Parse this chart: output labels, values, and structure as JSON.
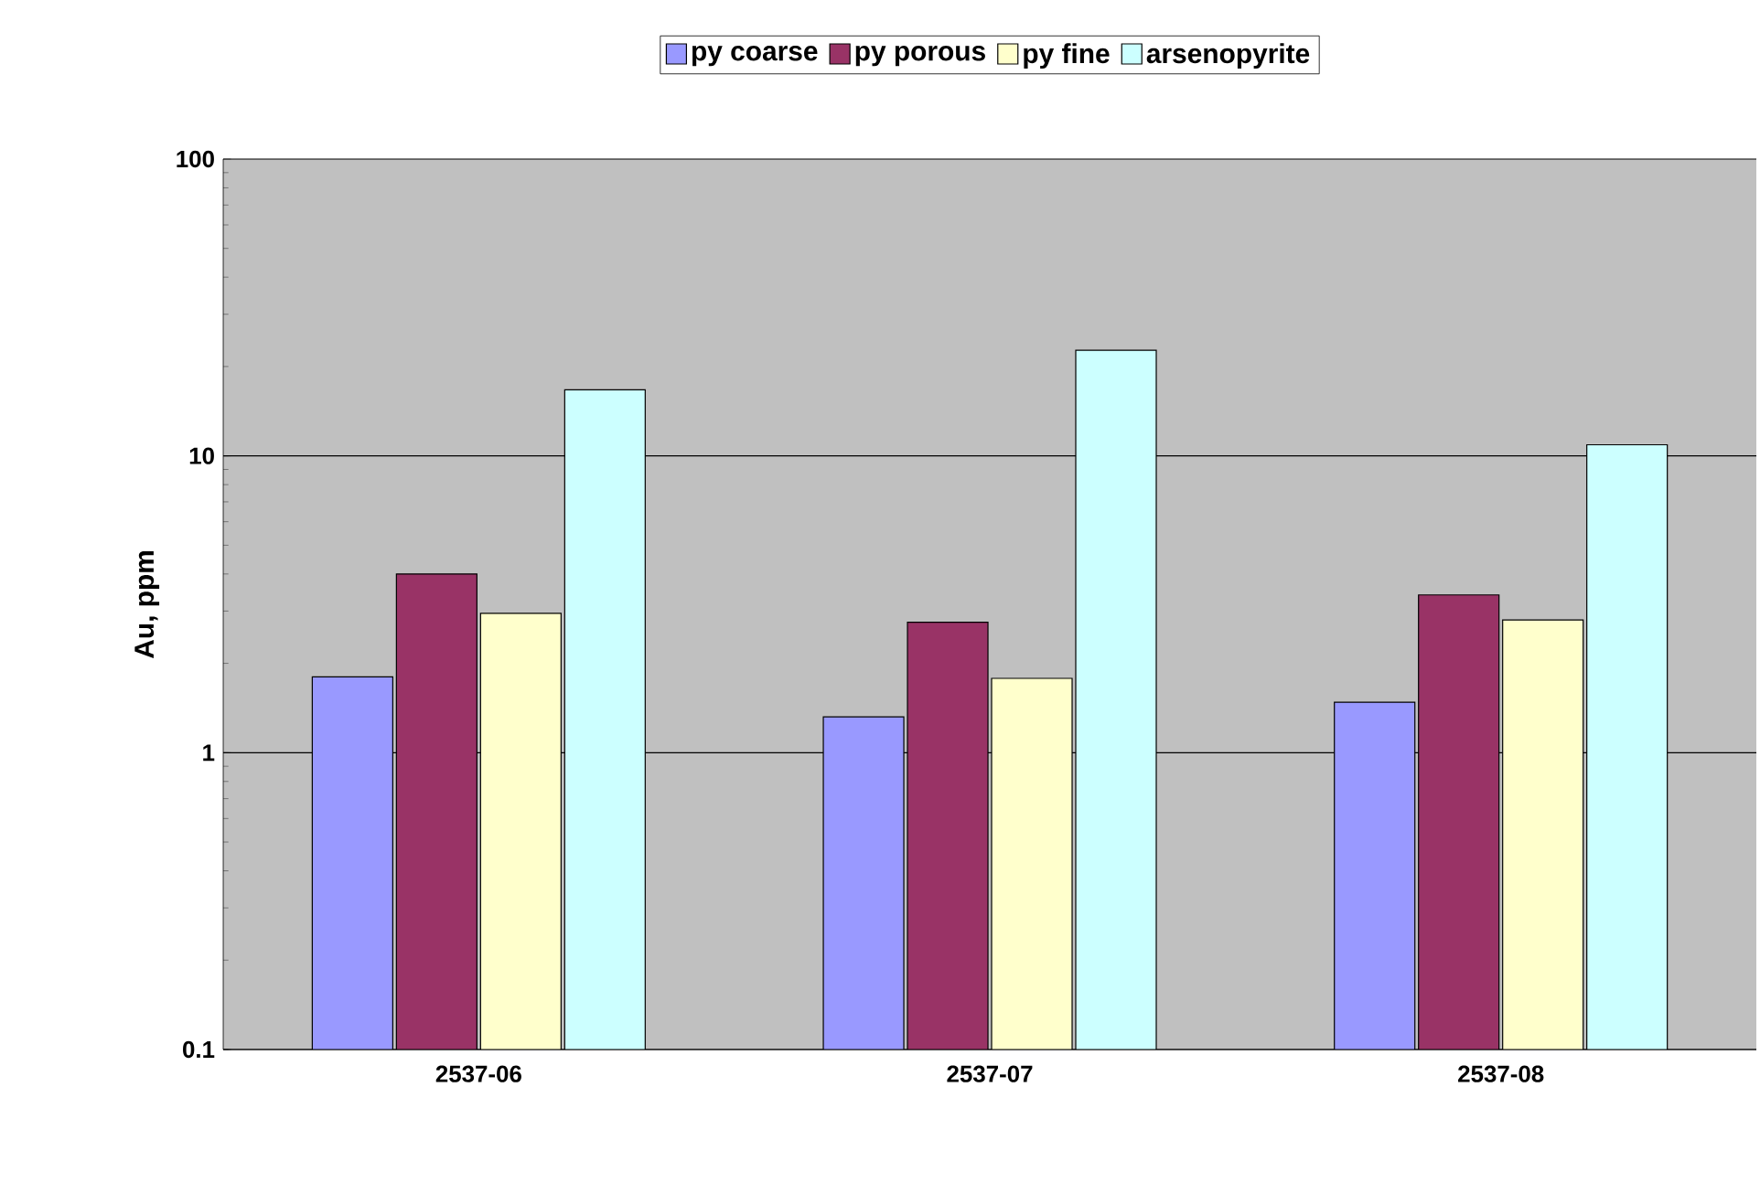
{
  "chart_data": {
    "type": "bar",
    "ylabel": "Au, ppm",
    "categories": [
      "2537-06",
      "2537-07",
      "2537-08"
    ],
    "series": [
      {
        "name": "py coarse",
        "color": "#9999ff",
        "values": [
          1.8,
          1.32,
          1.48
        ]
      },
      {
        "name": "py porous",
        "color": "#993366",
        "values": [
          4.0,
          2.75,
          3.4
        ]
      },
      {
        "name": "py fine",
        "color": "#ffffcc",
        "values": [
          2.95,
          1.78,
          2.8
        ]
      },
      {
        "name": "arsenopyrite",
        "color": "#ccffff",
        "values": [
          16.7,
          22.7,
          10.9
        ]
      }
    ],
    "log": "y",
    "ylim": [
      0.1,
      100
    ],
    "yticks": [
      0.1,
      1,
      10,
      100
    ],
    "grid": "y",
    "legend": "top"
  }
}
